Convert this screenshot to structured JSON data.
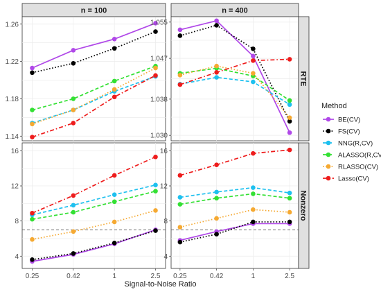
{
  "chart_data": {
    "type": "line",
    "xlabel": "Signal-to-Noise Ratio",
    "x_ticks": [
      "0.25",
      "0.42",
      "1",
      "2.5"
    ],
    "column_strips": [
      "n = 100",
      "n = 400"
    ],
    "row_strips": [
      "RTE",
      "Nonzero"
    ],
    "legend": {
      "title": "Method",
      "placement": "right",
      "entries": [
        {
          "name": "BE(CV)",
          "color": "#b048e8",
          "dash": "solid"
        },
        {
          "name": "FS(CV)",
          "color": "#000000",
          "dash": "dotted"
        },
        {
          "name": "NNG(R,CV)",
          "color": "#1ec0ef",
          "dash": "dashed"
        },
        {
          "name": "ALASSO(R,CV)",
          "color": "#33e033",
          "dash": "dashed"
        },
        {
          "name": "RLASSO(CV)",
          "color": "#f5a932",
          "dash": "dotted"
        },
        {
          "name": "Lasso(CV)",
          "color": "#ee1c1c",
          "dash": "dotdash"
        }
      ]
    },
    "grid": true,
    "panels": [
      {
        "row": 0,
        "col": 0,
        "ylim": [
          1.135,
          1.268
        ],
        "y_ticks": [
          1.14,
          1.18,
          1.22,
          1.26
        ],
        "y_tick_labels": [
          "1.14",
          "1.18",
          "1.22",
          "1.26"
        ],
        "series": [
          {
            "name": "BE(CV)",
            "values": [
              1.213,
              1.232,
              1.244,
              1.261
            ]
          },
          {
            "name": "FS(CV)",
            "values": [
              1.208,
              1.218,
              1.234,
              1.252
            ]
          },
          {
            "name": "NNG(R,CV)",
            "values": [
              1.154,
              1.168,
              1.188,
              1.204
            ]
          },
          {
            "name": "ALASSO(R,CV)",
            "values": [
              1.168,
              1.18,
              1.199,
              1.215
            ]
          },
          {
            "name": "RLASSO(CV)",
            "values": [
              1.153,
              1.168,
              1.19,
              1.213
            ]
          },
          {
            "name": "Lasso(CV)",
            "values": [
              1.139,
              1.154,
              1.182,
              1.205
            ]
          }
        ]
      },
      {
        "row": 0,
        "col": 1,
        "ylim": [
          1.0288,
          1.0562
        ],
        "y_ticks": [
          1.03,
          1.038,
          1.047,
          1.055
        ],
        "y_tick_labels": [
          "1.030",
          "1.038",
          "1.047",
          "1.055"
        ],
        "series": [
          {
            "name": "BE(CV)",
            "values": [
              1.0533,
              1.0553,
              1.0475,
              1.0306
            ]
          },
          {
            "name": "FS(CV)",
            "values": [
              1.052,
              1.0543,
              1.0491,
              1.0331
            ]
          },
          {
            "name": "NNG(R,CV)",
            "values": [
              1.0413,
              1.0428,
              1.0418,
              1.0368
            ]
          },
          {
            "name": "ALASSO(R,CV)",
            "values": [
              1.0437,
              1.0448,
              1.0431,
              1.0377
            ]
          },
          {
            "name": "RLASSO(CV)",
            "values": [
              1.0433,
              1.0453,
              1.0437,
              1.0339
            ]
          },
          {
            "name": "Lasso(CV)",
            "values": [
              1.0412,
              1.0439,
              1.0465,
              1.0468
            ]
          }
        ]
      },
      {
        "row": 1,
        "col": 0,
        "ylim": [
          2.6,
          16.9
        ],
        "y_ticks": [
          4,
          8,
          12,
          16
        ],
        "y_tick_labels": [
          "4",
          "8",
          "12",
          "16"
        ],
        "hline": 7,
        "series": [
          {
            "name": "BE(CV)",
            "values": [
              3.4,
              4.2,
              5.4,
              7.0
            ]
          },
          {
            "name": "FS(CV)",
            "values": [
              3.6,
              4.3,
              5.5,
              6.9
            ]
          },
          {
            "name": "NNG(R,CV)",
            "values": [
              8.7,
              9.8,
              11.0,
              12.1
            ]
          },
          {
            "name": "ALASSO(R,CV)",
            "values": [
              8.2,
              9.0,
              10.2,
              11.4
            ]
          },
          {
            "name": "RLASSO(CV)",
            "values": [
              5.9,
              6.8,
              7.9,
              9.2
            ]
          },
          {
            "name": "Lasso(CV)",
            "values": [
              8.9,
              10.9,
              13.2,
              15.3
            ]
          }
        ]
      },
      {
        "row": 1,
        "col": 1,
        "ylim": [
          2.6,
          16.9
        ],
        "y_ticks": [
          4,
          8,
          12,
          16
        ],
        "y_tick_labels": [
          "4",
          "8",
          "12",
          "16"
        ],
        "hline": 7,
        "series": [
          {
            "name": "BE(CV)",
            "values": [
              5.8,
              6.8,
              7.7,
              7.7
            ]
          },
          {
            "name": "FS(CV)",
            "values": [
              5.6,
              6.5,
              7.9,
              7.9
            ]
          },
          {
            "name": "NNG(R,CV)",
            "values": [
              10.7,
              11.3,
              11.8,
              11.2
            ]
          },
          {
            "name": "ALASSO(R,CV)",
            "values": [
              9.9,
              10.6,
              11.1,
              10.6
            ]
          },
          {
            "name": "RLASSO(CV)",
            "values": [
              7.3,
              8.3,
              9.3,
              9.0
            ]
          },
          {
            "name": "Lasso(CV)",
            "values": [
              13.2,
              14.4,
              15.7,
              16.1
            ]
          }
        ]
      }
    ]
  }
}
